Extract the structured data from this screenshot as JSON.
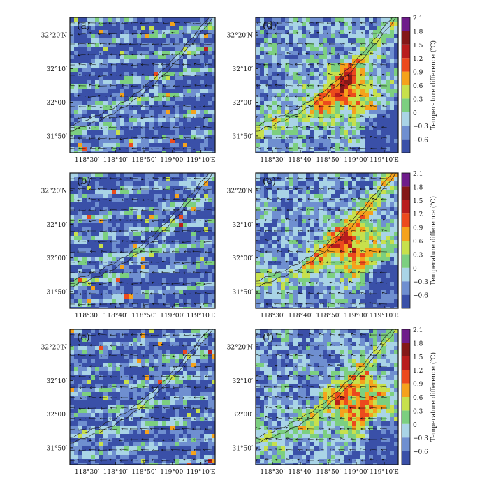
{
  "chart_data": {
    "type": "heatmap",
    "panel_layout": "3 rows x 2 columns; panels (a),(b),(c) left column, (d),(e),(f) right column",
    "panels": [
      {
        "label": "(a)",
        "column": "left",
        "row": 1
      },
      {
        "label": "(b)",
        "column": "left",
        "row": 2
      },
      {
        "label": "(c)",
        "column": "left",
        "row": 3
      },
      {
        "label": "(d)",
        "column": "right",
        "row": 1
      },
      {
        "label": "(e)",
        "column": "right",
        "row": 2
      },
      {
        "label": "(f)",
        "column": "right",
        "row": 3
      }
    ],
    "x_ticks": [
      "118°30′",
      "118°40′",
      "118°50′",
      "119°00′",
      "119°10′E"
    ],
    "y_ticks": [
      "32°20′N",
      "32°10′",
      "32°00′",
      "31°50′"
    ],
    "x_tick_values": [
      118.5,
      118.6667,
      118.8333,
      119.0,
      119.1667
    ],
    "y_tick_values": [
      32.3333,
      32.1667,
      32.0,
      31.8333
    ],
    "xlim": [
      118.4,
      119.25
    ],
    "ylim": [
      31.75,
      32.42
    ],
    "colorbar": {
      "label": "Temperature difference (℃)",
      "tick_labels": [
        "2.1",
        "1.8",
        "1.5",
        "1.2",
        "0.9",
        "0.6",
        "0.3",
        "0",
        "−0.3",
        "−0.6"
      ],
      "levels": [
        -0.6,
        -0.3,
        0,
        0.3,
        0.6,
        0.9,
        1.2,
        1.5,
        1.8,
        2.1
      ],
      "colors": [
        "#3a50a8",
        "#6f8fd0",
        "#a9d4e6",
        "#7ccf80",
        "#c7e04c",
        "#f5a21c",
        "#ec4a1d",
        "#b81d1d",
        "#841818",
        "#6e1c8a"
      ]
    },
    "overlays": [
      "wind vectors (arrows)",
      "river / coastline contour lines"
    ]
  },
  "colors": {
    "background": "#ffffff",
    "frame": "#111111"
  }
}
